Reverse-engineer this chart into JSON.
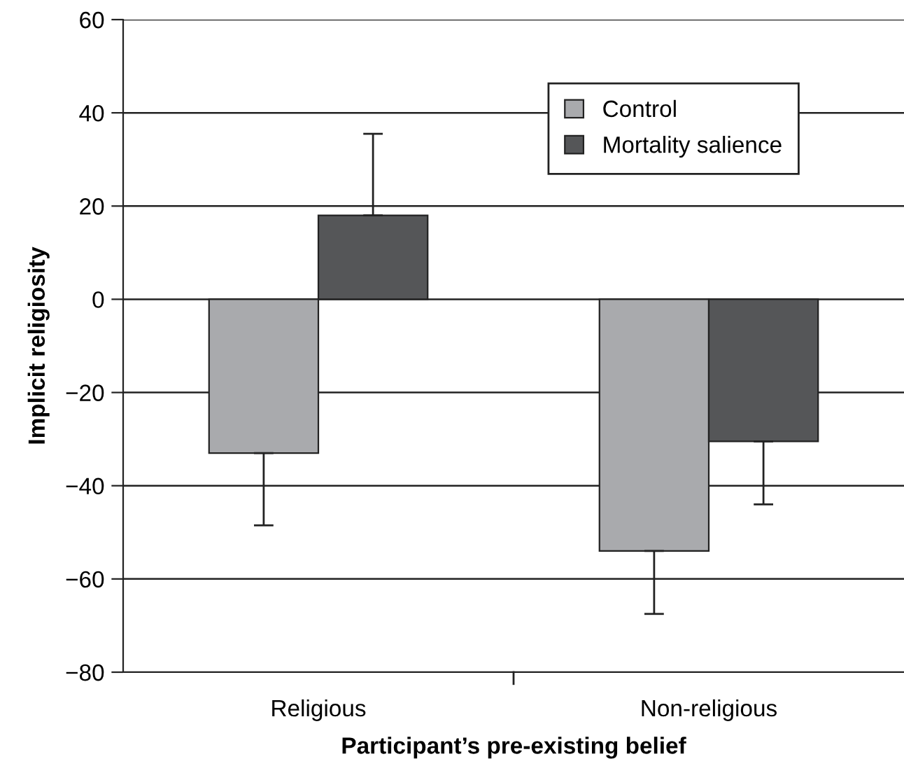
{
  "chart_data": {
    "type": "bar",
    "xlabel": "Participant’s pre-existing belief",
    "ylabel": "Implicit religiosity",
    "categories": [
      "Religious",
      "Non-religious"
    ],
    "series": [
      {
        "name": "Control",
        "color": "#a9aaad",
        "values": [
          -33,
          -54
        ],
        "errors": [
          [
            -48.5,
            -33
          ],
          [
            -67.5,
            -54
          ]
        ]
      },
      {
        "name": "Mortality salience",
        "color": "#555658",
        "values": [
          18,
          -30.5
        ],
        "errors": [
          [
            18,
            35.5
          ],
          [
            -44,
            -30.5
          ]
        ]
      }
    ],
    "ylim": [
      -80,
      60
    ],
    "yticks": [
      {
        "value": -80,
        "label": "−80"
      },
      {
        "value": -60,
        "label": "−60"
      },
      {
        "value": -40,
        "label": "−40"
      },
      {
        "value": -20,
        "label": "−20"
      },
      0,
      20,
      40,
      60
    ],
    "grid": "y",
    "legend": "top right"
  }
}
